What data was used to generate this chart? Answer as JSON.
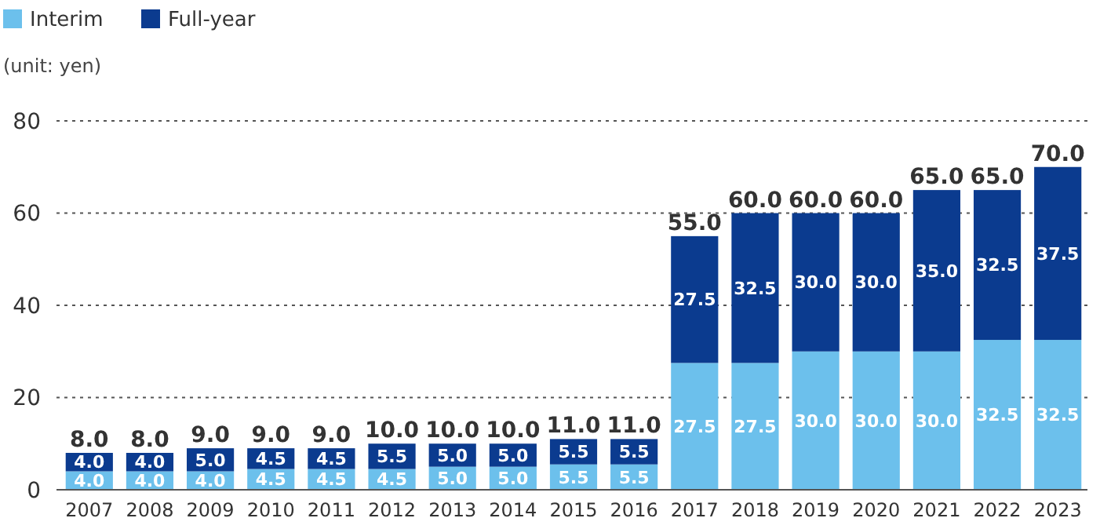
{
  "chart_data": {
    "type": "bar",
    "stacked": true,
    "annotations": [
      "(unit: yen)"
    ],
    "categories": [
      "2007",
      "2008",
      "2009",
      "2010",
      "2011",
      "2012",
      "2013",
      "2014",
      "2015",
      "2016",
      "2017",
      "2018",
      "2019",
      "2020",
      "2021",
      "2022",
      "2023"
    ],
    "series": [
      {
        "name": "Interim",
        "color": "#6cc0ec",
        "values": [
          4.0,
          4.0,
          4.0,
          4.5,
          4.5,
          4.5,
          5.0,
          5.0,
          5.5,
          5.5,
          27.5,
          27.5,
          30.0,
          30.0,
          30.0,
          32.5,
          32.5
        ],
        "value_labels": [
          "4.0",
          "4.0",
          "4.0",
          "4.5",
          "4.5",
          "4.5",
          "5.0",
          "5.0",
          "5.5",
          "5.5",
          "27.5",
          "27.5",
          "30.0",
          "30.0",
          "30.0",
          "32.5",
          "32.5"
        ]
      },
      {
        "name": "Full-year",
        "color": "#0b3b8f",
        "values": [
          4.0,
          4.0,
          5.0,
          4.5,
          4.5,
          5.5,
          5.0,
          5.0,
          5.5,
          5.5,
          27.5,
          32.5,
          30.0,
          30.0,
          35.0,
          32.5,
          37.5
        ],
        "value_labels": [
          "4.0",
          "4.0",
          "5.0",
          "4.5",
          "4.5",
          "5.5",
          "5.0",
          "5.0",
          "5.5",
          "5.5",
          "27.5",
          "32.5",
          "30.0",
          "30.0",
          "35.0",
          "32.5",
          "37.5"
        ]
      }
    ],
    "totals": [
      "8.0",
      "8.0",
      "9.0",
      "9.0",
      "9.0",
      "10.0",
      "10.0",
      "10.0",
      "11.0",
      "11.0",
      "55.0",
      "60.0",
      "60.0",
      "60.0",
      "65.0",
      "65.0",
      "70.0"
    ],
    "ylim": [
      0,
      80
    ],
    "yticks": [
      0,
      20,
      40,
      60,
      80
    ],
    "grid": "y",
    "legend": "top left"
  }
}
